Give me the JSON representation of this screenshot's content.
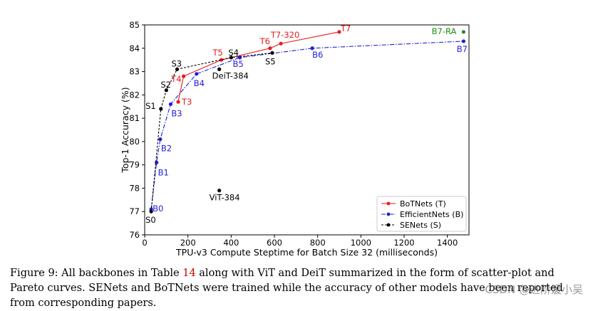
{
  "chart_data": {
    "type": "scatter",
    "xlabel": "TPU-v3 Compute Steptime for Batch Size 32 (milliseconds)",
    "ylabel": "Top-1 Accuracy (%)",
    "xlim": [
      0,
      1500
    ],
    "ylim": [
      76,
      85
    ],
    "xticks": [
      0,
      200,
      400,
      600,
      800,
      1000,
      1200,
      1400
    ],
    "yticks": [
      76,
      77,
      78,
      79,
      80,
      81,
      82,
      83,
      84,
      85
    ],
    "legend_position": "bottom-right",
    "series": [
      {
        "name": "BoTNets (T)",
        "color": "#e8191c",
        "style": "solid",
        "points": [
          {
            "label": "T3",
            "x": 155,
            "y": 81.7
          },
          {
            "label": "T4",
            "x": 180,
            "y": 82.8
          },
          {
            "label": "T5",
            "x": 355,
            "y": 83.5
          },
          {
            "label": "T6",
            "x": 580,
            "y": 84.0
          },
          {
            "label": "T7-320",
            "x": 630,
            "y": 84.2
          },
          {
            "label": "T7",
            "x": 900,
            "y": 84.7
          }
        ]
      },
      {
        "name": "EfficientNets (B)",
        "color": "#1f1fd6",
        "style": "dashdot",
        "points": [
          {
            "label": "B0",
            "x": 30,
            "y": 77.1
          },
          {
            "label": "B1",
            "x": 55,
            "y": 79.1
          },
          {
            "label": "B2",
            "x": 72,
            "y": 80.1
          },
          {
            "label": "B3",
            "x": 120,
            "y": 81.6
          },
          {
            "label": "B4",
            "x": 240,
            "y": 82.9
          },
          {
            "label": "B5",
            "x": 440,
            "y": 83.6
          },
          {
            "label": "B6",
            "x": 775,
            "y": 84.0
          },
          {
            "label": "B7",
            "x": 1475,
            "y": 84.3
          }
        ]
      },
      {
        "name": "SENets (S)",
        "color": "#000000",
        "style": "dashed",
        "points": [
          {
            "label": "S0",
            "x": 30,
            "y": 77.0
          },
          {
            "label": "S1",
            "x": 75,
            "y": 81.4
          },
          {
            "label": "S2",
            "x": 100,
            "y": 82.2
          },
          {
            "label": "S3",
            "x": 150,
            "y": 83.1
          },
          {
            "label": "S4",
            "x": 400,
            "y": 83.6
          },
          {
            "label": "S5",
            "x": 590,
            "y": 83.8
          }
        ]
      }
    ],
    "standalone_points": [
      {
        "label": "B7-RA",
        "x": 1475,
        "y": 84.7,
        "color": "#1a8f1a"
      },
      {
        "label": "DeiT-384",
        "x": 345,
        "y": 83.1,
        "color": "#000000"
      },
      {
        "label": "ViT-384",
        "x": 345,
        "y": 77.9,
        "color": "#000000"
      }
    ]
  },
  "caption": {
    "part1": "Figure 9: All backbones in Table ",
    "ref": "14",
    "part2": " along with ViT and DeiT summarized in the form of scatter-plot and Pareto curves. SENets and BoTNets were trained while the accuracy of other models have been reported from corresponding papers."
  },
  "watermark": "CSDN @进阶媛小吴"
}
